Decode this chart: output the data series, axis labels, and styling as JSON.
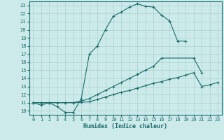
{
  "background_color": "#cceaea",
  "line_color": "#1a6b6b",
  "grid_color": "#aad0d0",
  "xlabel": "Humidex (Indice chaleur)",
  "xlim": [
    -0.5,
    23.5
  ],
  "ylim": [
    9.5,
    23.5
  ],
  "ytick_vals": [
    10,
    11,
    12,
    13,
    14,
    15,
    16,
    17,
    18,
    19,
    20,
    21,
    22,
    23
  ],
  "xtick_vals": [
    0,
    1,
    2,
    3,
    4,
    5,
    6,
    7,
    8,
    9,
    10,
    11,
    12,
    13,
    14,
    15,
    16,
    17,
    18,
    19,
    20,
    21,
    22,
    23
  ],
  "line1_x": [
    0,
    1,
    2,
    3,
    4,
    5,
    6,
    7,
    8,
    9,
    10,
    11,
    12,
    13,
    14,
    15,
    16,
    17,
    18,
    19
  ],
  "line1_y": [
    11,
    10.7,
    11,
    10.5,
    9.8,
    9.8,
    11.5,
    17.0,
    18.0,
    20.0,
    21.7,
    22.2,
    22.8,
    23.2,
    22.9,
    22.8,
    21.8,
    21.1,
    18.6,
    18.6
  ],
  "line2_x": [
    0,
    5,
    6,
    7,
    8,
    9,
    10,
    11,
    12,
    13,
    14,
    15,
    16,
    20,
    21
  ],
  "line2_y": [
    11,
    11,
    11.2,
    11.5,
    12.0,
    12.5,
    13.0,
    13.5,
    14.0,
    14.5,
    15.0,
    15.5,
    16.5,
    16.5,
    14.7
  ],
  "line3_x": [
    0,
    1,
    2,
    3,
    4,
    5,
    6,
    7,
    8,
    9,
    10,
    11,
    12,
    13,
    14,
    15,
    16,
    17,
    18,
    19,
    20,
    21,
    22,
    23
  ],
  "line3_y": [
    11,
    11,
    11,
    11,
    11,
    11,
    11.05,
    11.1,
    11.4,
    11.7,
    12.0,
    12.3,
    12.5,
    12.8,
    13.1,
    13.4,
    13.6,
    13.9,
    14.1,
    14.4,
    14.7,
    13.0,
    13.2,
    13.5
  ]
}
